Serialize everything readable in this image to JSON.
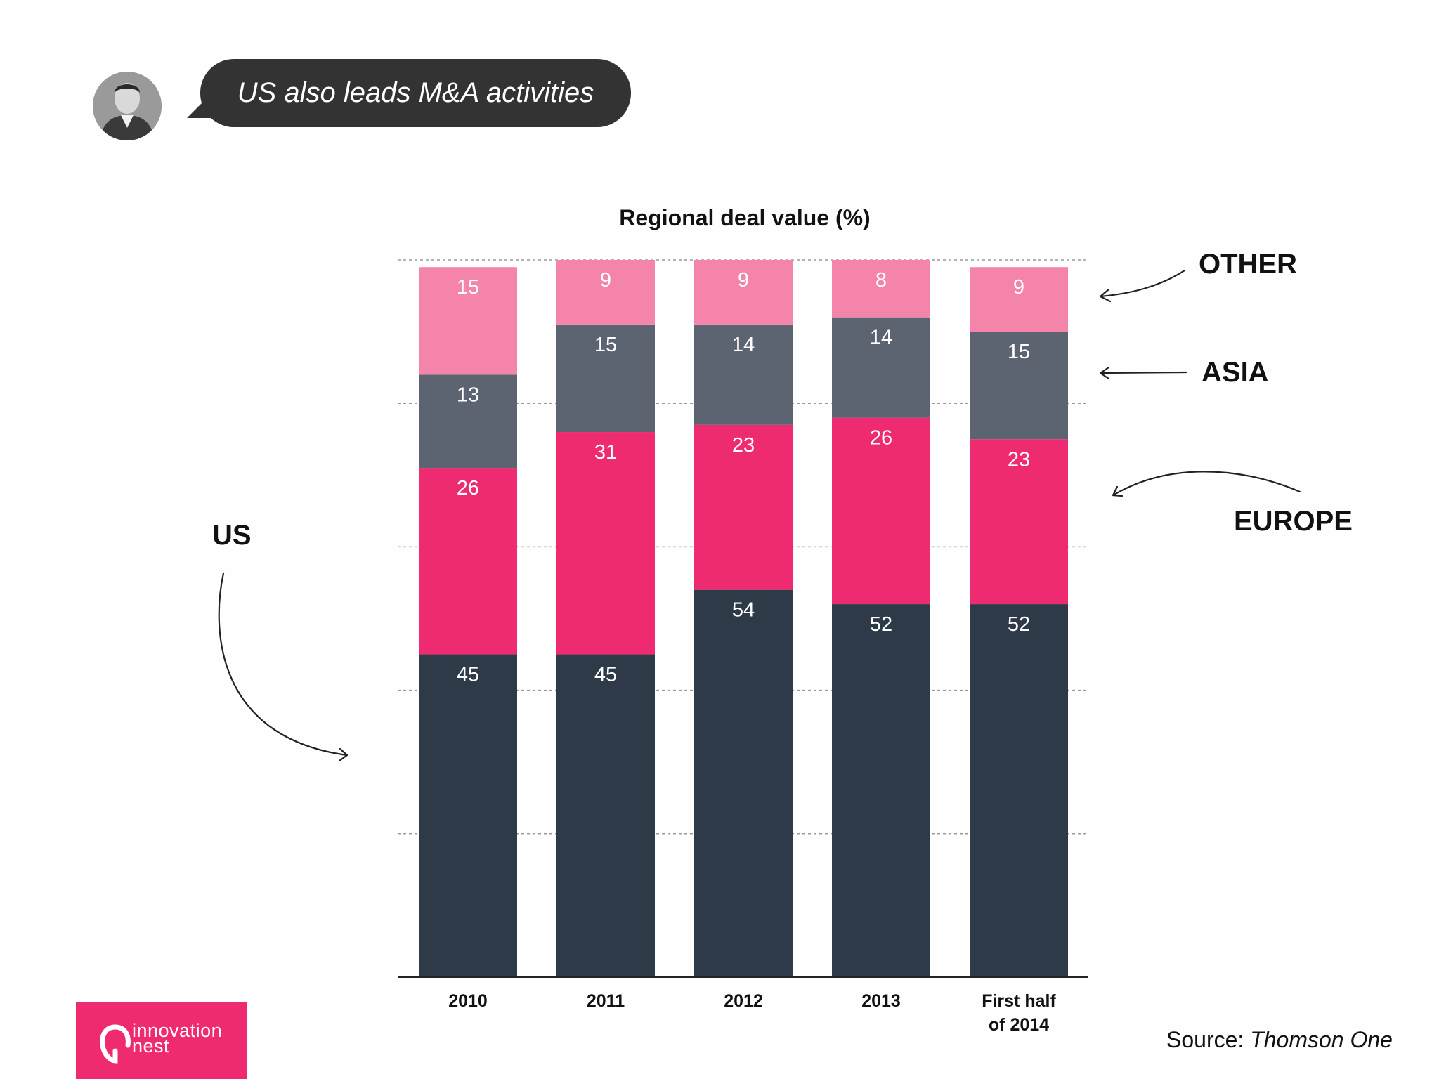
{
  "header": {
    "speech": "US also leads M&A activities"
  },
  "chart_data": {
    "type": "bar",
    "stacked": true,
    "title": "Regional deal value (%)",
    "categories": [
      "2010",
      "2011",
      "2012",
      "2013",
      "First half of 2014"
    ],
    "category_lines": [
      [
        "2010"
      ],
      [
        "2011"
      ],
      [
        "2012"
      ],
      [
        "2013"
      ],
      [
        "First half",
        "of 2014"
      ]
    ],
    "series": [
      {
        "name": "US",
        "values": [
          45,
          45,
          54,
          52,
          52
        ],
        "color": "#2e3a48"
      },
      {
        "name": "EUROPE",
        "values": [
          26,
          31,
          23,
          26,
          23
        ],
        "color": "#ee2a70"
      },
      {
        "name": "ASIA",
        "values": [
          13,
          15,
          14,
          14,
          15
        ],
        "color": "#5d6471"
      },
      {
        "name": "OTHER",
        "values": [
          15,
          9,
          9,
          8,
          9
        ],
        "color": "#f584aa"
      }
    ],
    "ylim": [
      0,
      100
    ],
    "grid": true
  },
  "labels": {
    "us": "US",
    "europe": "EUROPE",
    "asia": "ASIA",
    "other": "OTHER"
  },
  "source": {
    "prefix": "Source:",
    "name": "Thomson One"
  },
  "logo": {
    "line1": "innovation",
    "line2": "nest",
    "color": "#ee2a70"
  }
}
